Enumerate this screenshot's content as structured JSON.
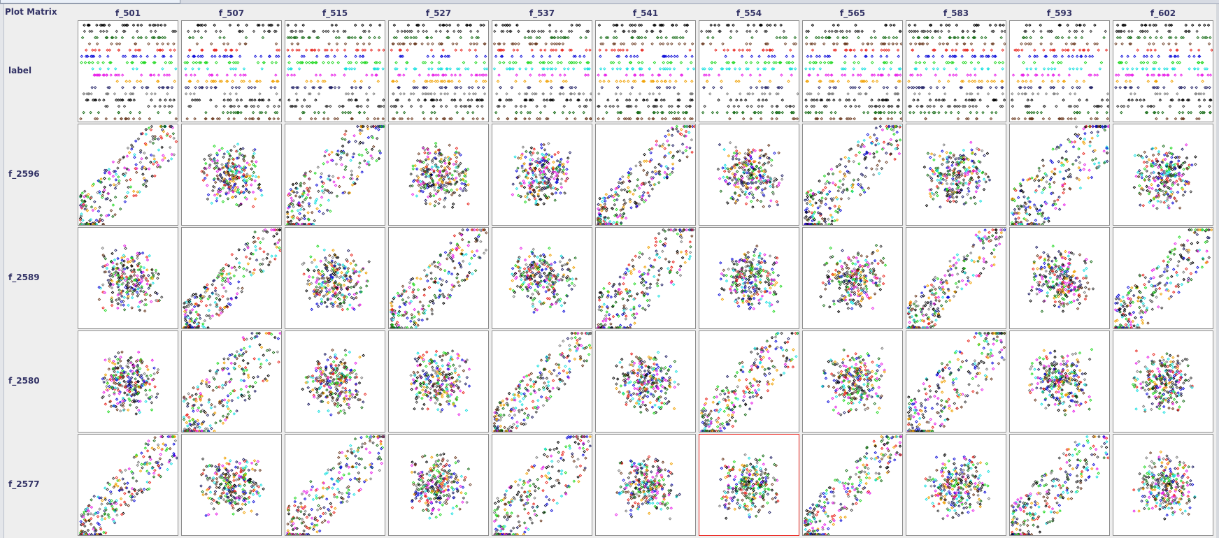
{
  "window": {
    "title": "Plot Matrix",
    "selected_cell": {
      "row": "f_2577",
      "column": "f_554"
    }
  },
  "matrix": {
    "columns": [
      "f_501",
      "f_507",
      "f_515",
      "f_527",
      "f_537",
      "f_541",
      "f_554",
      "f_565",
      "f_583",
      "f_593",
      "f_602"
    ],
    "rows": [
      "label",
      "f_2596",
      "f_2589",
      "f_2580",
      "f_2577"
    ]
  },
  "colors": {
    "class_palette": [
      "#000000",
      "#3a3a3a",
      "#1a6e1a",
      "#6a3a20",
      "#e8231c",
      "#1010d8",
      "#1fd81f",
      "#17e0e0",
      "#e81fe8",
      "#f0a000",
      "#222266",
      "#7d7d7d"
    ],
    "cell_background": "#ffffff",
    "cell_border": "#8d8d8d",
    "selected_border": "#e8231c",
    "label_text": "#333366"
  }
}
